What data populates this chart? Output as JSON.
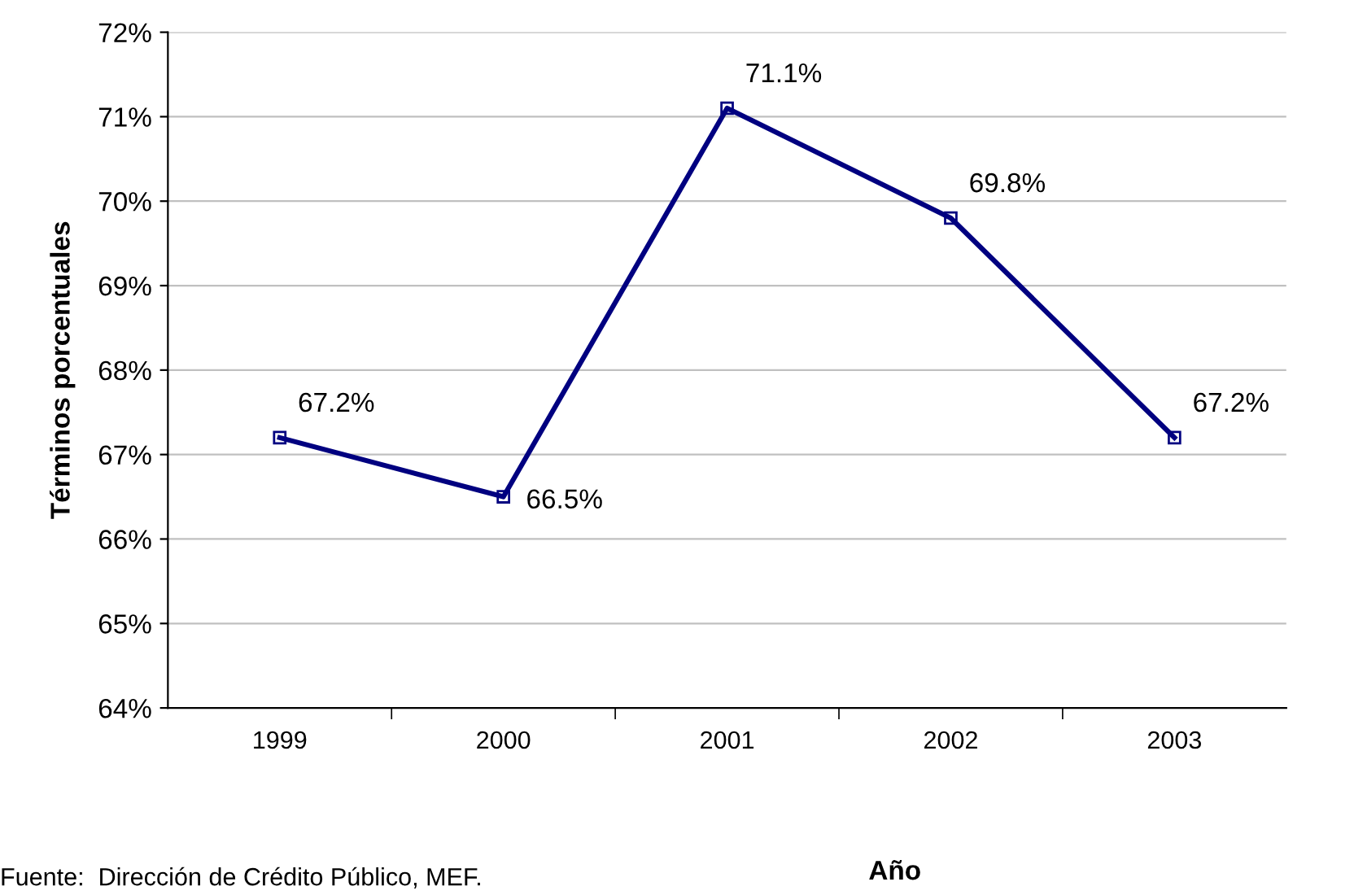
{
  "chart_data": {
    "type": "line",
    "xlabel": "Año",
    "ylabel": "Términos porcentuales",
    "categories": [
      "1999",
      "2000",
      "2001",
      "2002",
      "2003"
    ],
    "series": [
      {
        "color": "#000080",
        "values": [
          67.2,
          66.5,
          71.1,
          69.8,
          67.2
        ],
        "value_labels": [
          "67.2%",
          "66.5%",
          "71.1%",
          "69.8%",
          "67.2%"
        ]
      }
    ],
    "ylim": [
      64,
      72
    ],
    "yticks": [
      {
        "value": 64,
        "label": "64%"
      },
      {
        "value": 65,
        "label": "65%"
      },
      {
        "value": 66,
        "label": "66%"
      },
      {
        "value": 67,
        "label": "67%"
      },
      {
        "value": 68,
        "label": "68%"
      },
      {
        "value": 69,
        "label": "69%"
      },
      {
        "value": 70,
        "label": "70%"
      },
      {
        "value": 71,
        "label": "71%"
      },
      {
        "value": 72,
        "label": "72%"
      }
    ],
    "grid": "y",
    "marker": "square",
    "line_style": "solid",
    "legend": false,
    "annotations": [
      "Fuente:  Dirección de Crédito Público, MEF."
    ]
  }
}
